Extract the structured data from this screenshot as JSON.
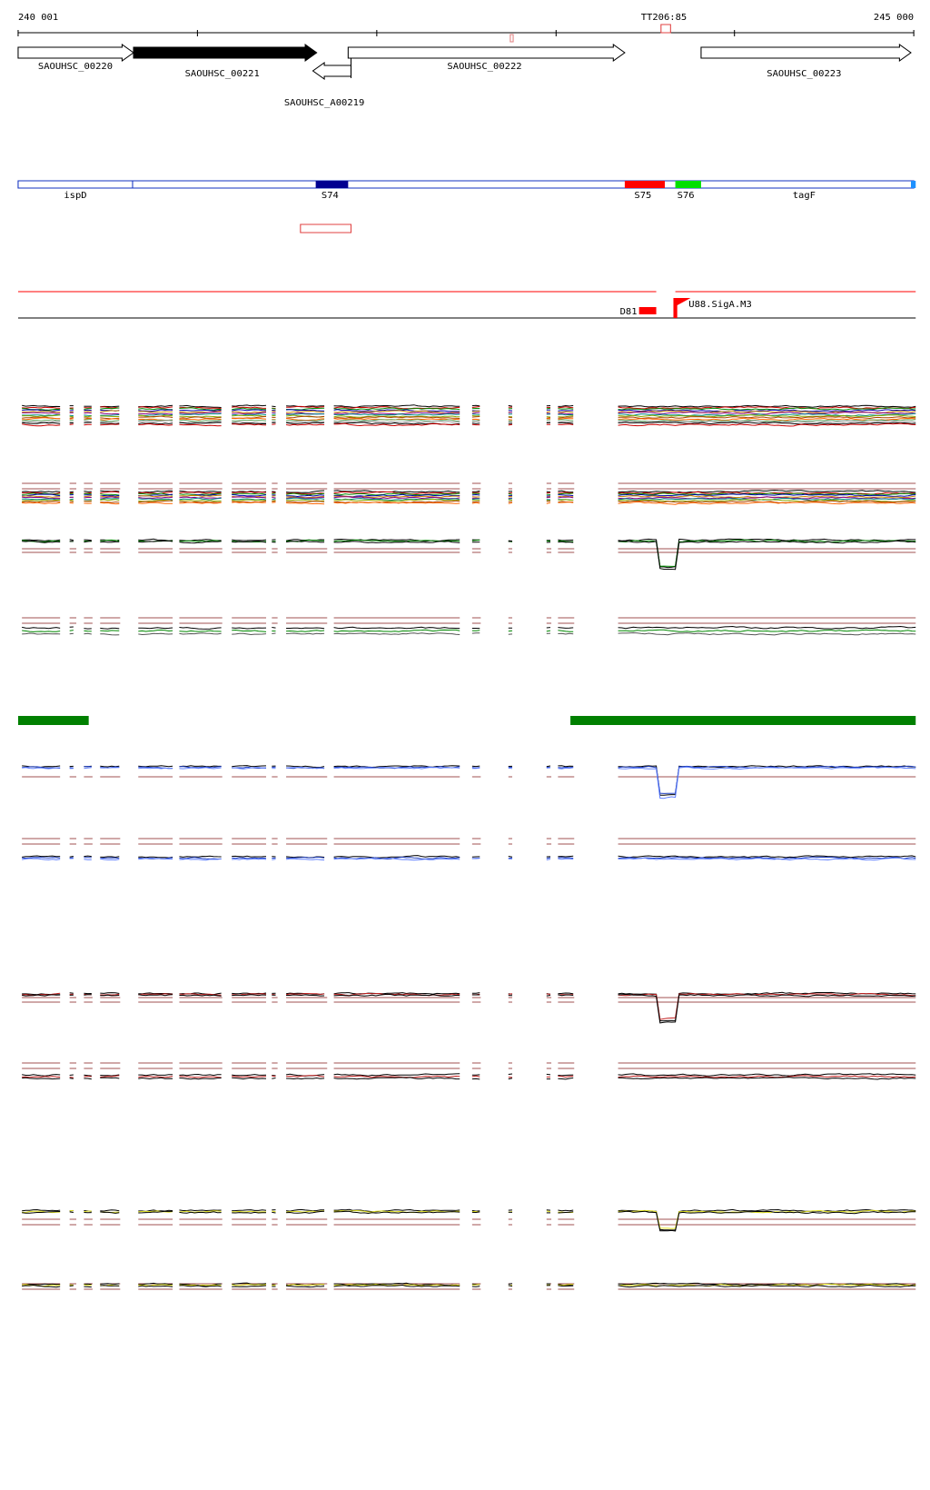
{
  "ruler": {
    "start": "240 001",
    "end": "245 000",
    "marker": "TT206:85"
  },
  "genes": [
    "SAOUHSC_00220",
    "SAOUHSC_00221",
    "SAOUHSC_00222",
    "SAOUHSC_00223",
    "SAOUHSC_A00219"
  ],
  "features": [
    "ispD",
    "S74",
    "S75",
    "S76",
    "tagF"
  ],
  "sites": [
    "D81",
    "U88.SigA.M3"
  ]
}
